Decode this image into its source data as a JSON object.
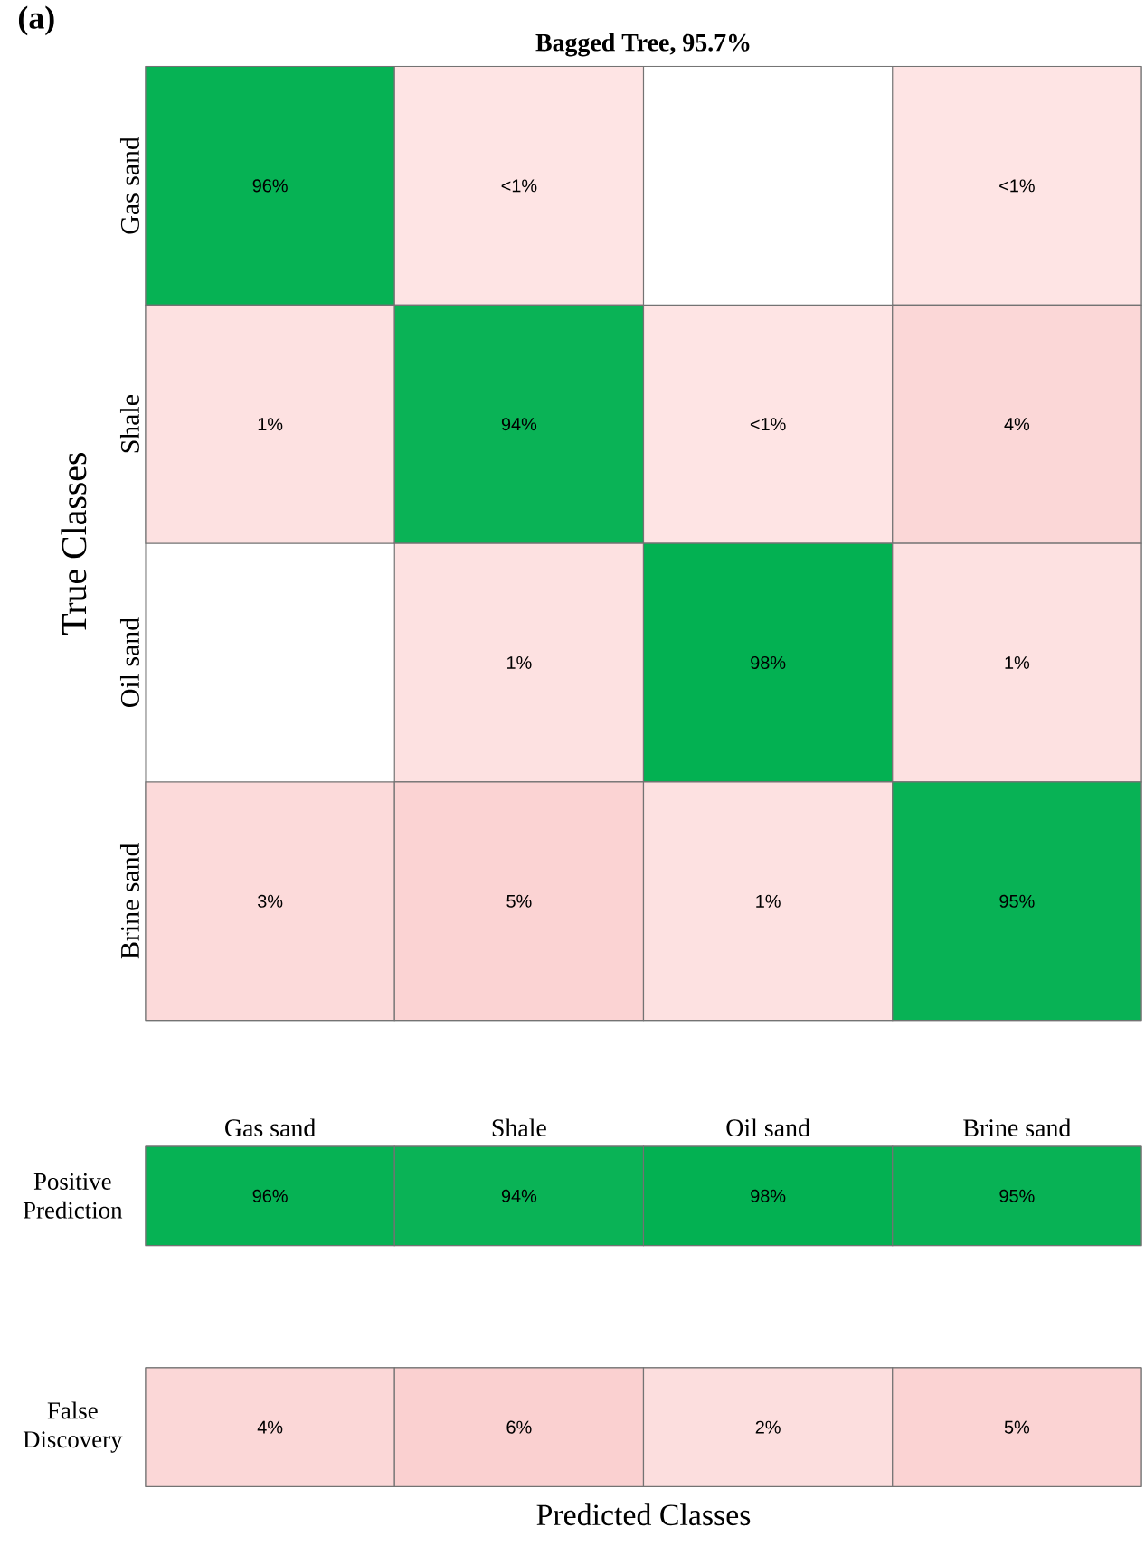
{
  "chart_data": [
    {
      "type": "heatmap",
      "title": "Bagged Tree, 95.7%",
      "ylabel": "True Classes",
      "annotations": [
        "(a)"
      ],
      "tick_labels": "y",
      "categories": [
        null,
        null,
        null,
        null
      ],
      "y_categories": [
        "Gas sand",
        "Shale",
        "Oil sand",
        "Brine sand"
      ],
      "cells": [
        [
          96,
          null,
          null,
          null
        ],
        [
          1,
          94,
          null,
          4
        ],
        [
          null,
          1,
          98,
          1
        ],
        [
          3,
          5,
          1,
          95
        ]
      ],
      "cell_labels": [
        [
          "96%",
          "<1%",
          null,
          "<1%"
        ],
        [
          "1%",
          "94%",
          "<1%",
          "4%"
        ],
        [
          null,
          "1%",
          "98%",
          "1%"
        ],
        [
          "3%",
          "5%",
          "1%",
          "95%"
        ]
      ]
    },
    {
      "type": "heatmap",
      "categories": [
        "Gas sand",
        "Shale",
        "Oil sand",
        "Brine sand"
      ],
      "y_categories": [
        "Positive Prediction"
      ],
      "cells": [
        [
          96,
          94,
          98,
          95
        ]
      ],
      "cell_labels": [
        [
          "96%",
          "94%",
          "98%",
          "95%"
        ]
      ]
    },
    {
      "type": "heatmap",
      "xlabel": "Predicted Classes",
      "tick_labels": "y",
      "categories": [
        null,
        null,
        null,
        null
      ],
      "y_categories": [
        "False Discovery"
      ],
      "cells": [
        [
          4,
          6,
          2,
          5
        ]
      ],
      "cell_labels": [
        [
          "4%",
          "6%",
          "2%",
          "5%"
        ]
      ]
    }
  ]
}
